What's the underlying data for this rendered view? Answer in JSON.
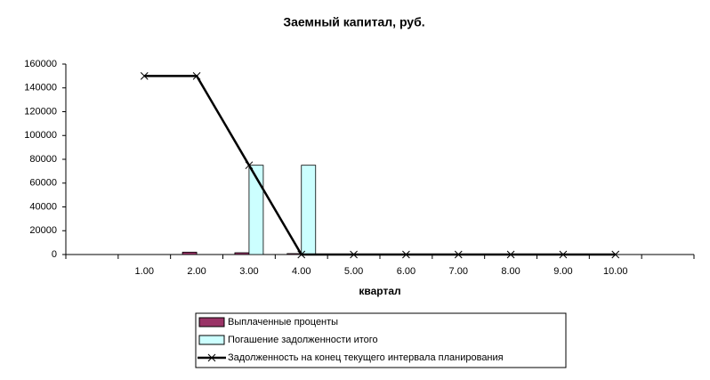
{
  "chart_data": {
    "type": "bar-line",
    "title": "Заемный капитал, руб.",
    "x_label": "квартал",
    "categories": [
      null,
      "1.00",
      "2.00",
      "3.00",
      "4.00",
      "5.00",
      "6.00",
      "7.00",
      "8.00",
      "9.00",
      "10.00",
      null
    ],
    "series": [
      {
        "name": "Выплаченные проценты",
        "type": "bar",
        "color": "#993366",
        "values": [
          null,
          0,
          2000,
          1500,
          800,
          0,
          0,
          0,
          0,
          0,
          0,
          null
        ]
      },
      {
        "name": "Погашение задолженности итого",
        "type": "bar",
        "color": "#ccffff",
        "values": [
          null,
          0,
          0,
          75000,
          75000,
          0,
          0,
          0,
          0,
          0,
          0,
          null
        ]
      },
      {
        "name": "Задолженность на конец текущего интервала планирования",
        "type": "line",
        "color": "#000000",
        "values": [
          null,
          150000,
          150000,
          75000,
          0,
          0,
          0,
          0,
          0,
          0,
          0,
          null
        ]
      }
    ],
    "ylim": [
      0,
      160000
    ],
    "yticks": [
      0,
      20000,
      40000,
      60000,
      80000,
      100000,
      120000,
      140000,
      160000
    ],
    "grid": false
  }
}
